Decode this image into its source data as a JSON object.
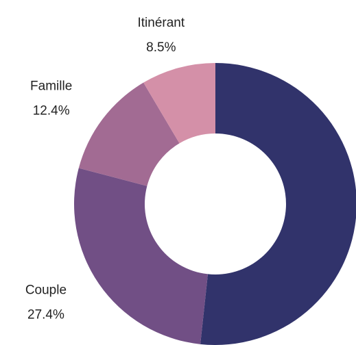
{
  "chart_data": {
    "type": "donut",
    "categories": [
      null,
      "Couple",
      "Famille",
      "Itinérant"
    ],
    "values": [
      51.7,
      27.4,
      12.4,
      8.5
    ],
    "value_labels": [
      null,
      "27.4%",
      "12.4%",
      "8.5%"
    ],
    "colors": [
      "#31336b",
      "#714f85",
      "#a26b93",
      "#d490a8"
    ]
  }
}
